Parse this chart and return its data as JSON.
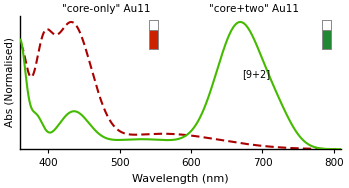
{
  "title_left": "\"core-only\" Au11",
  "title_right": "\"core+two\" Au11",
  "annotation_right": "[9+2]",
  "xlabel": "Wavelength (nm)",
  "ylabel": "Abs (Normalised)",
  "xlim": [
    360,
    810
  ],
  "ylim": [
    0,
    1.05
  ],
  "xticks": [
    400,
    500,
    600,
    700,
    800
  ],
  "green_color": "#44bb00",
  "red_color": "#aa0000",
  "background_color": "#ffffff",
  "green_linewidth": 1.5,
  "red_linewidth": 1.5,
  "vial_left_color": "#cc2200",
  "vial_right_color": "#228833"
}
